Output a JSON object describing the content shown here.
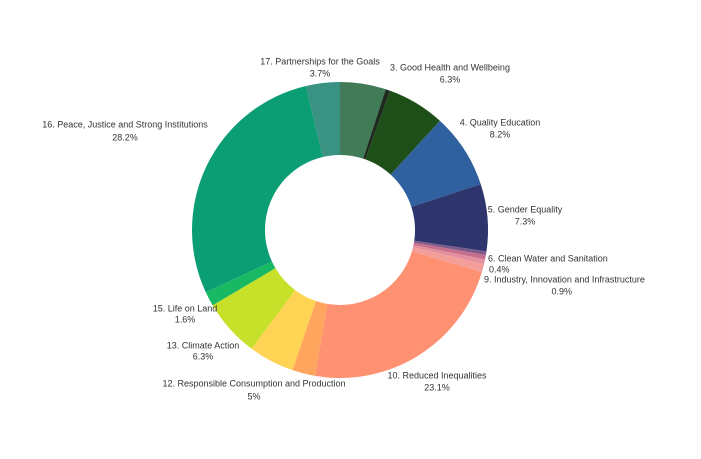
{
  "chart_data": {
    "type": "donut",
    "categories": [
      null,
      null,
      "3. Good Health and Wellbeing",
      "4. Quality Education",
      "5. Gender Equality",
      "6. Clean Water and Sanitation",
      null,
      null,
      "9. Industry, Innovation and Infrastructure",
      "10. Reduced Inequalities",
      null,
      "12. Responsible Consumption and Production",
      "13. Climate Action",
      "15. Life on Land",
      "16. Peace, Justice and Strong Institutions",
      "17. Partnerships for the Goals"
    ],
    "values": [
      5,
      0.5,
      6.3,
      8.2,
      7.3,
      0.4,
      0.5,
      0.5,
      0.9,
      23.1,
      2.5,
      5,
      6.3,
      1.6,
      28.2,
      3.7
    ],
    "value_labels": [
      null,
      null,
      "6.3%",
      "8.2%",
      "7.3%",
      "0.4%",
      null,
      null,
      "0.9%",
      "23.1%",
      null,
      "5%",
      "6.3%",
      "1.6%",
      "28.2%",
      "3.7%"
    ],
    "colors": [
      "#417b58",
      "#1d2a1d",
      "#1f4f18",
      "#2f609f",
      "#2e346c",
      "#7b5a8c",
      "#c56f8c",
      "#e48f9f",
      "#f39e98",
      "#ff9173",
      "#ffa55e",
      "#ffd455",
      "#c7e02a",
      "#19b862",
      "#0b9e74",
      "#3a9282"
    ]
  }
}
